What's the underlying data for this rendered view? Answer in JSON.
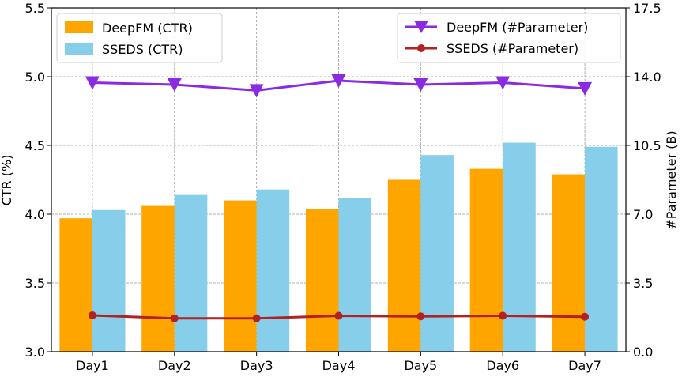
{
  "chart_data": {
    "type": "bar",
    "categories": [
      "Day1",
      "Day2",
      "Day3",
      "Day4",
      "Day5",
      "Day6",
      "Day7"
    ],
    "bar_series": [
      {
        "name": "DeepFM (CTR)",
        "color": "#FFA500",
        "values": [
          3.97,
          4.06,
          4.1,
          4.04,
          4.25,
          4.33,
          4.29
        ]
      },
      {
        "name": "SSEDS (CTR)",
        "color": "#87CEEB",
        "values": [
          4.03,
          4.14,
          4.18,
          4.12,
          4.43,
          4.52,
          4.49
        ]
      }
    ],
    "line_series": [
      {
        "name": "DeepFM (#Parameter)",
        "color": "#8A2BE2",
        "marker": "triangle-down",
        "values": [
          13.7,
          13.6,
          13.3,
          13.8,
          13.6,
          13.7,
          13.4
        ]
      },
      {
        "name": "SSEDS (#Parameter)",
        "color": "#B22222",
        "marker": "circle",
        "values": [
          1.85,
          1.7,
          1.7,
          1.83,
          1.8,
          1.83,
          1.78
        ]
      }
    ],
    "ylabel": "CTR (%)",
    "y2label": "#Parameter (B)",
    "ylim": [
      3.0,
      5.5
    ],
    "y2lim": [
      0.0,
      17.5
    ],
    "yticks": [
      "3.0",
      "3.5",
      "4.0",
      "4.5",
      "5.0",
      "5.5"
    ],
    "y2ticks": [
      "0.0",
      "3.5",
      "7.0",
      "10.5",
      "14.0",
      "17.5"
    ],
    "grid": true,
    "legend_bars_position": "top-left",
    "legend_lines_position": "top-right"
  }
}
